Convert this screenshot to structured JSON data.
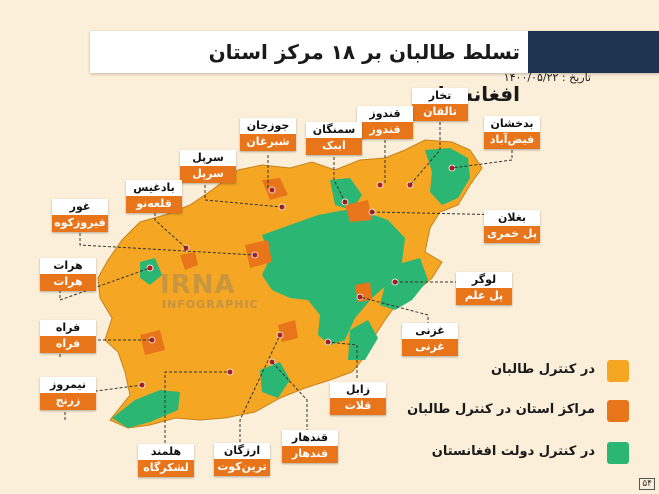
{
  "header": {
    "title": "تسلط طالبان بر ۱۸ مرکز استان افغانستان",
    "date": "تاریخ : ۱۴۰۰/۰۵/۲۲"
  },
  "colors": {
    "taliban": "#f5a623",
    "taliban_centers": "#e8751a",
    "government": "#2bb673",
    "background": "#fcefd9",
    "title_block": "#1f3450"
  },
  "provinces": [
    {
      "province": "تخار",
      "center": "تالقان"
    },
    {
      "province": "بدخشان",
      "center": "فیض‌آباد"
    },
    {
      "province": "قندوز",
      "center": "قندوز"
    },
    {
      "province": "سمنگان",
      "center": "ایبک"
    },
    {
      "province": "جوزجان",
      "center": "شبرغان"
    },
    {
      "province": "سرپل",
      "center": "سرپل"
    },
    {
      "province": "بادغیس",
      "center": "قلعه‌نو"
    },
    {
      "province": "غور",
      "center": "فیروزکوه"
    },
    {
      "province": "هرات",
      "center": "هرات"
    },
    {
      "province": "فراه",
      "center": "فراه"
    },
    {
      "province": "نیمروز",
      "center": "زرنج"
    },
    {
      "province": "هلمند",
      "center": "لشکرگاه"
    },
    {
      "province": "ارزگان",
      "center": "ترین‌کوت"
    },
    {
      "province": "قندهار",
      "center": "قندهار"
    },
    {
      "province": "زابل",
      "center": "قلات"
    },
    {
      "province": "غزنی",
      "center": "غزنی"
    },
    {
      "province": "لوگر",
      "center": "پل علم"
    },
    {
      "province": "بغلان",
      "center": "پل خمری"
    }
  ],
  "legend": [
    {
      "label": "در کنترل طالبان",
      "color": "#f5a623"
    },
    {
      "label": "مراکز استان در کنترل طالبان",
      "color": "#e8751a"
    },
    {
      "label": "در کنترل دولت افغانستان",
      "color": "#2bb673"
    }
  ],
  "watermark": {
    "main": "IRNA",
    "sub": "INFOGRAPHIC"
  },
  "page_number": "۵۴"
}
